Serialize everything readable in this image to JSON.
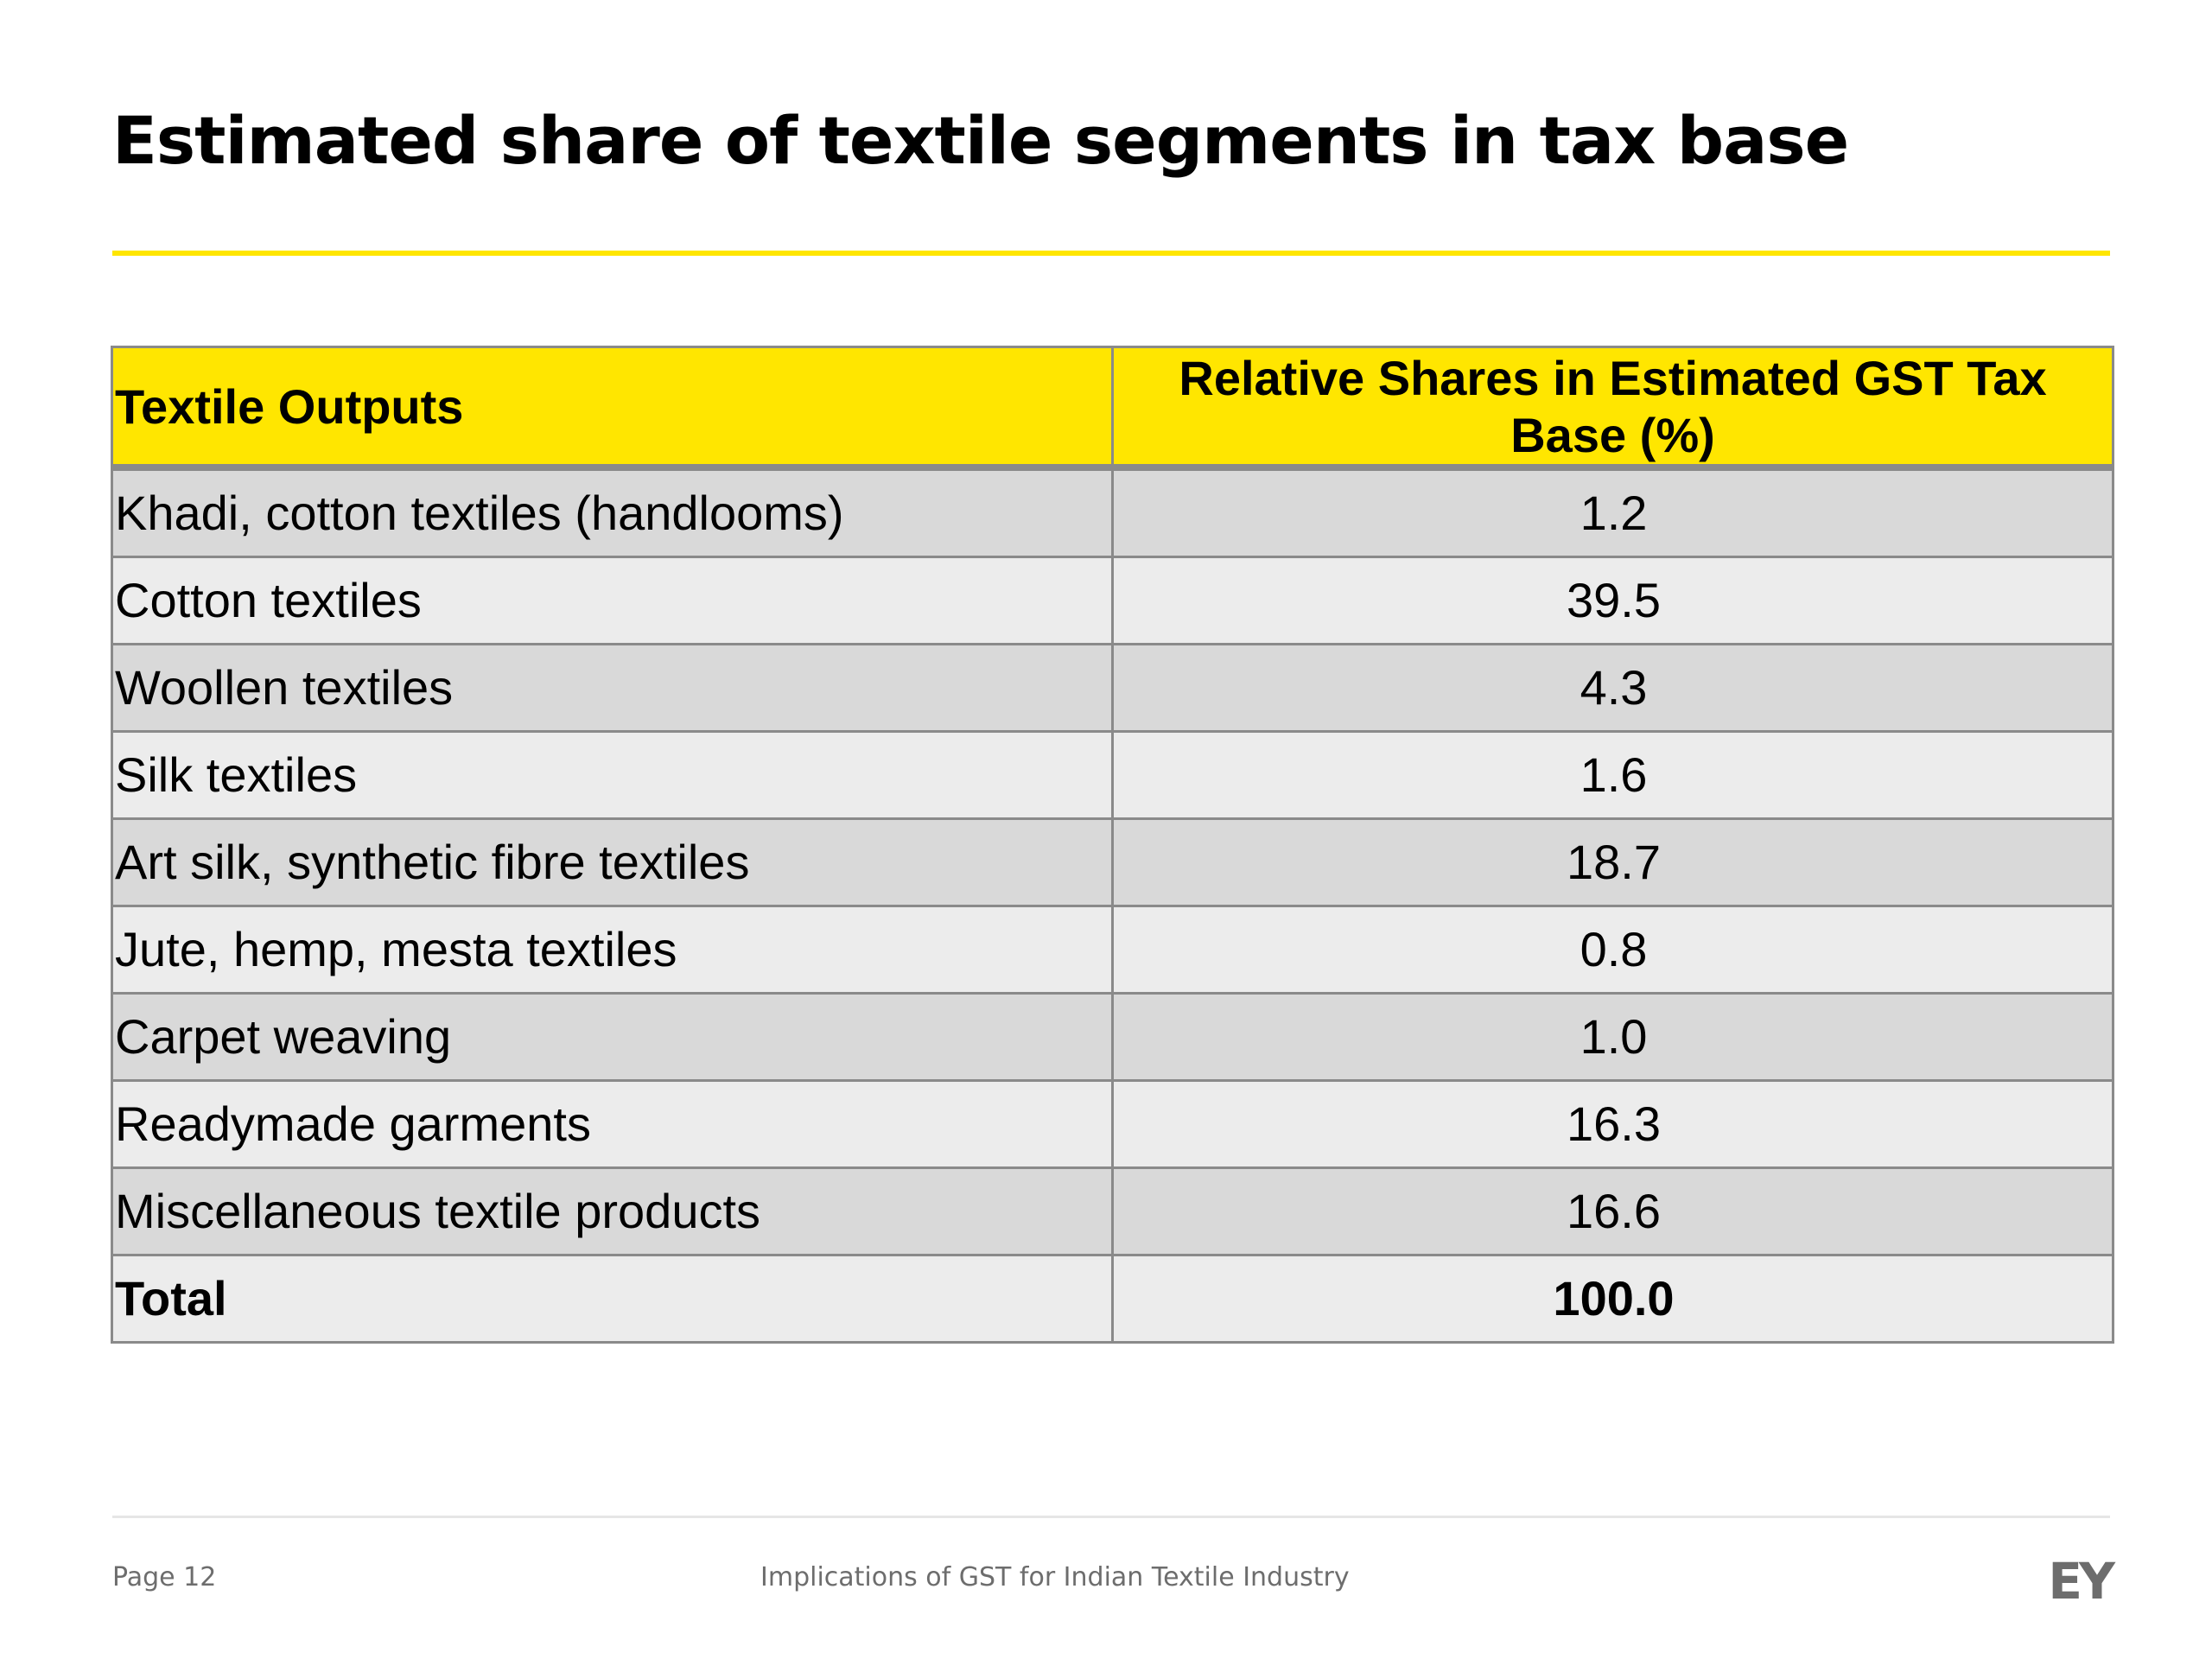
{
  "slide": {
    "title": "Estimated share of textile segments in tax base"
  },
  "table": {
    "header": {
      "col1": "Textile Outputs",
      "col2": "Relative Shares in Estimated GST Tax Base (%)"
    },
    "rows": [
      {
        "label": "Khadi, cotton textiles (handlooms)",
        "value": "1.2"
      },
      {
        "label": "Cotton textiles",
        "value": "39.5"
      },
      {
        "label": "Woollen textiles",
        "value": "4.3"
      },
      {
        "label": "Silk textiles",
        "value": "1.6"
      },
      {
        "label": "Art silk, synthetic fibre textiles",
        "value": "18.7"
      },
      {
        "label": "Jute, hemp, mesta textiles",
        "value": "0.8"
      },
      {
        "label": "Carpet weaving",
        "value": "1.0"
      },
      {
        "label": "Readymade garments",
        "value": "16.3"
      },
      {
        "label": "Miscellaneous textile products",
        "value": "16.6"
      },
      {
        "label": "Total",
        "value": "100.0"
      }
    ]
  },
  "footer": {
    "page": "Page 12",
    "title": "Implications of GST for Indian Textile Industry",
    "logo": "EY"
  },
  "colors": {
    "accent": "#FFE600",
    "row_dark": "#d9d9d9",
    "row_light": "#ececec",
    "border": "#8a8a8a",
    "footer_text": "#6d6d6d"
  }
}
